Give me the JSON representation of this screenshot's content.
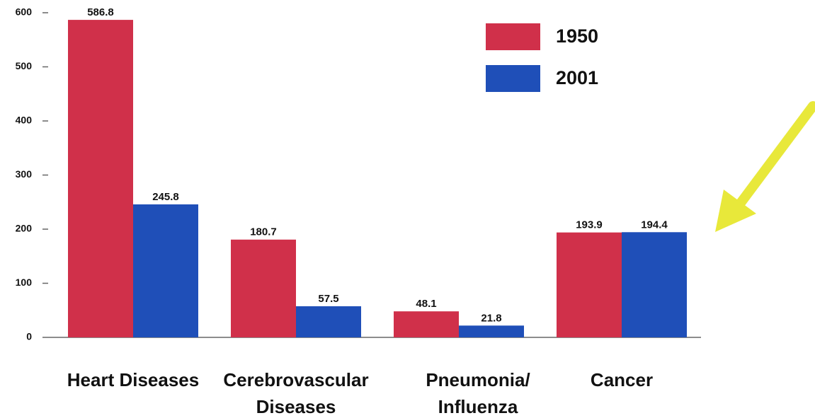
{
  "chart_data": {
    "type": "bar",
    "categories": [
      "Heart Diseases",
      "Cerebrovascular Diseases",
      "Pneumonia/ Influenza",
      "Cancer"
    ],
    "series": [
      {
        "name": "1950",
        "color": "#d0304a",
        "values": [
          586.8,
          180.7,
          48.1,
          193.9
        ]
      },
      {
        "name": "2001",
        "color": "#1f4fb8",
        "values": [
          245.8,
          57.5,
          21.8,
          194.4
        ]
      }
    ],
    "ylim": [
      0,
      600
    ],
    "yticks": [
      0,
      100,
      200,
      300,
      400,
      500,
      600
    ]
  }
}
